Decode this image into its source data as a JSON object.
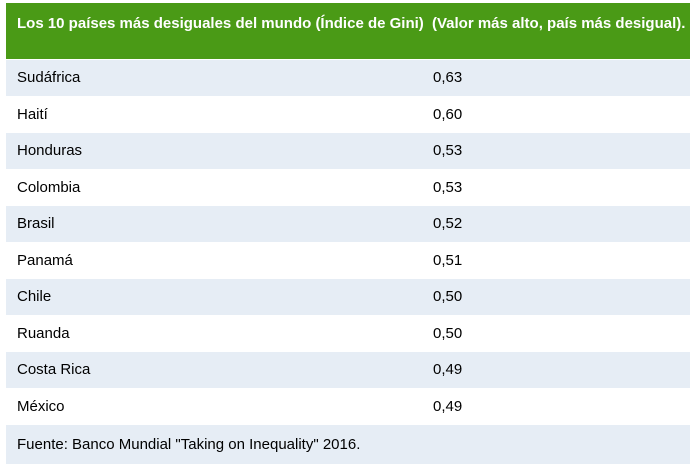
{
  "table": {
    "header": {
      "col1": "Los 10 países más desiguales del mundo (Índice de Gini)",
      "col2": "(Valor más alto, país más desigual)."
    },
    "rows": [
      {
        "country": "Sudáfrica",
        "value": "0,63"
      },
      {
        "country": "Haití",
        "value": "0,60"
      },
      {
        "country": "Honduras",
        "value": "0,53"
      },
      {
        "country": "Colombia",
        "value": "0,53"
      },
      {
        "country": "Brasil",
        "value": "0,52"
      },
      {
        "country": "Panamá",
        "value": "0,51"
      },
      {
        "country": "Chile",
        "value": "0,50"
      },
      {
        "country": "Ruanda",
        "value": "0,50"
      },
      {
        "country": "Costa Rica",
        "value": "0,49"
      },
      {
        "country": "México",
        "value": "0,49"
      }
    ],
    "footer": "Fuente: Banco Mundial \"Taking on Inequality\" 2016."
  },
  "colors": {
    "header_bg": "#4a9a16",
    "row_alt_bg": "#e6edf5"
  }
}
